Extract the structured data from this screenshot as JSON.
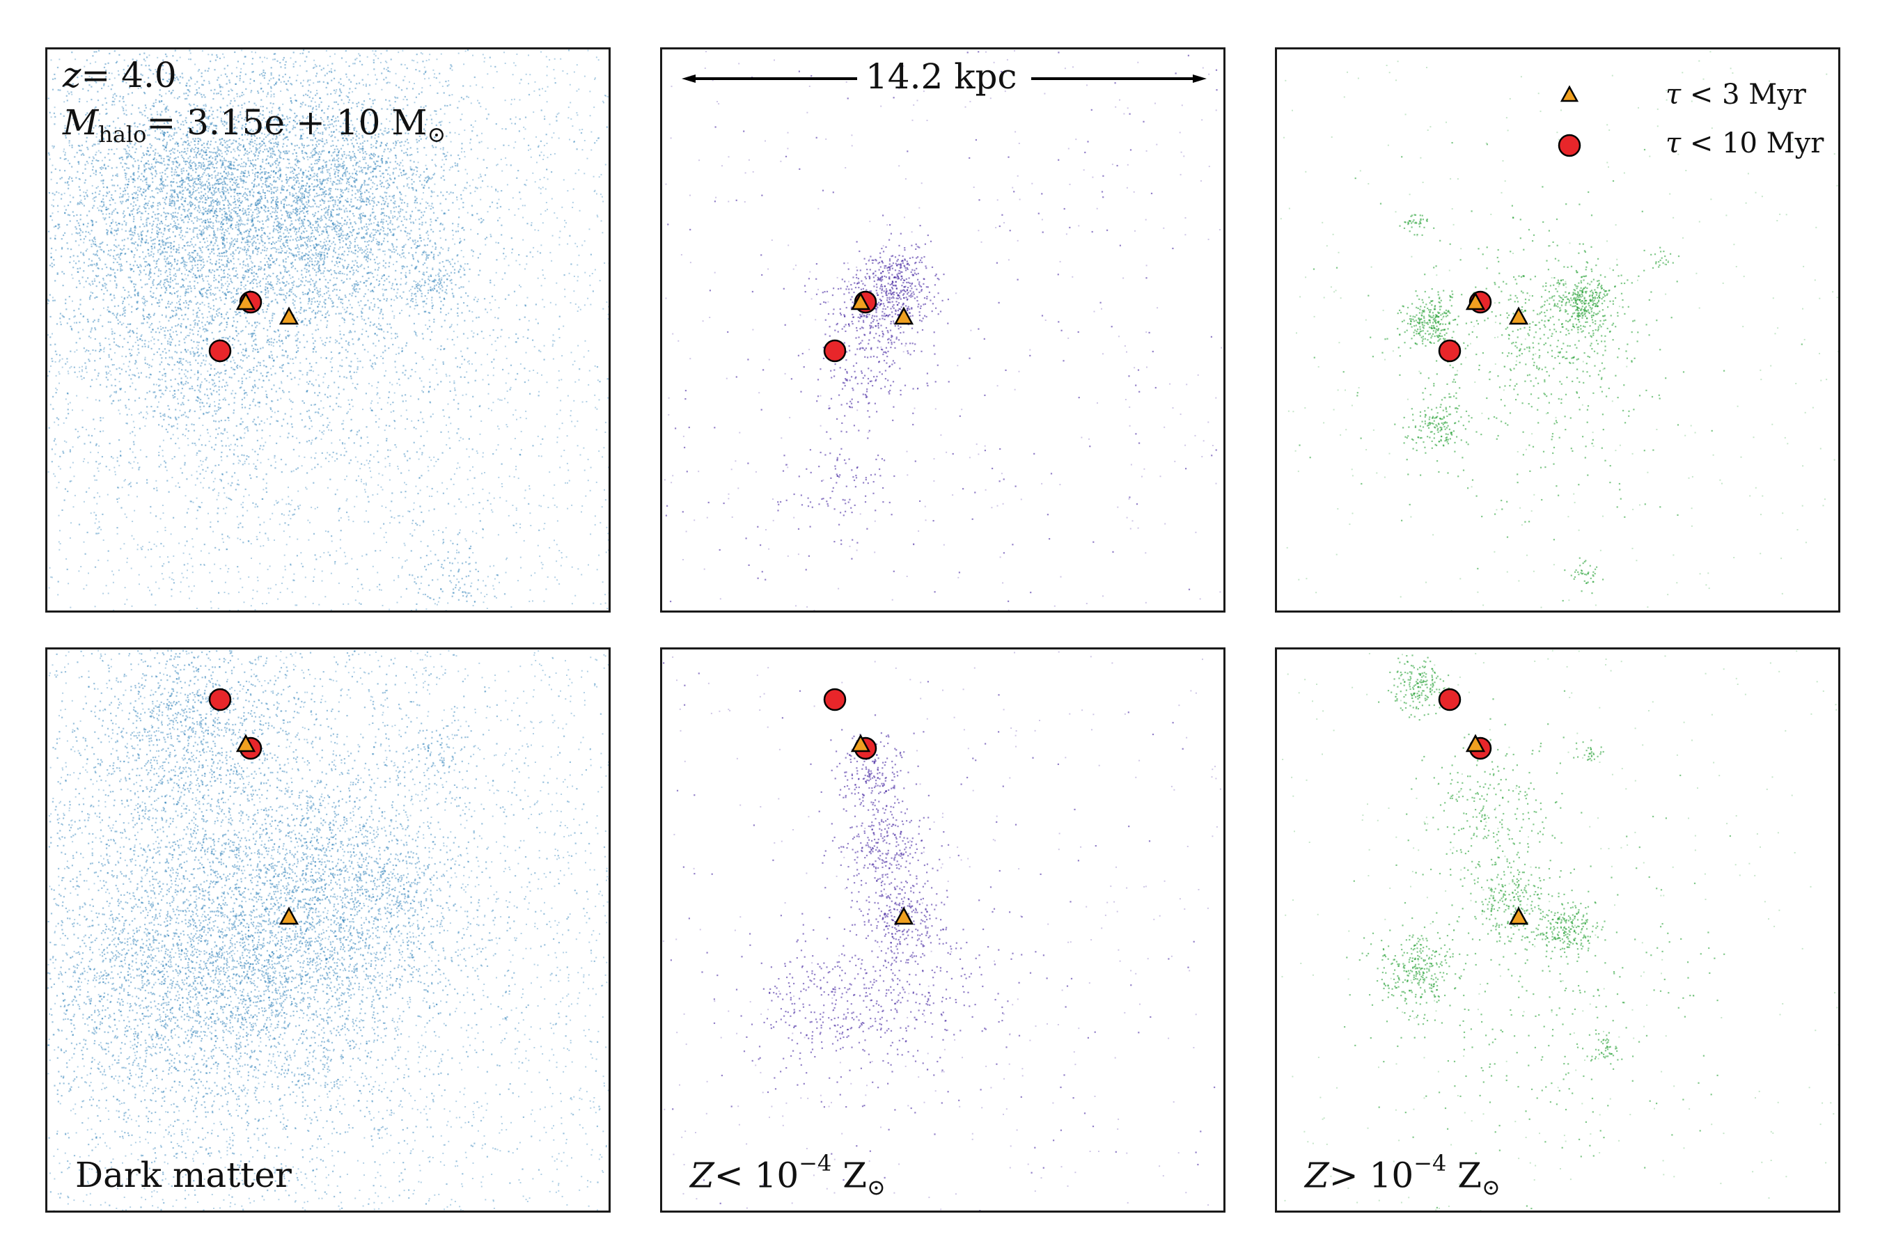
{
  "header": {
    "redshift_var": "z",
    "redshift_value": "= 4.0",
    "mass_var": "M",
    "mass_sub": "halo",
    "mass_value": "= 3.15e + 10 M",
    "sun_symbol": "⊙"
  },
  "scalebar": {
    "label": "14.2 kpc"
  },
  "legend": {
    "items": [
      {
        "marker": "triangle",
        "var": "τ",
        "text": "< 3 Myr",
        "color": "#f0a020"
      },
      {
        "marker": "circle",
        "var": "τ",
        "text": "< 10 Myr",
        "color": "#e8262a"
      }
    ]
  },
  "row_labels": {
    "dm": "Dark matter",
    "low_z": {
      "var": "Z",
      "text": "< 10",
      "exp": "−4",
      "unit": "Z",
      "sun": "⊙"
    },
    "high_z": {
      "var": "Z",
      "text": "> 10",
      "exp": "−4",
      "unit": "Z",
      "sun": "⊙"
    }
  },
  "colors": {
    "dark_matter": "#1f77b4",
    "low_metal": "#3a1a9a",
    "high_metal": "#1a9a2a",
    "triangle": "#f0a020",
    "circle": "#e8262a",
    "outline": "#000000"
  }
}
